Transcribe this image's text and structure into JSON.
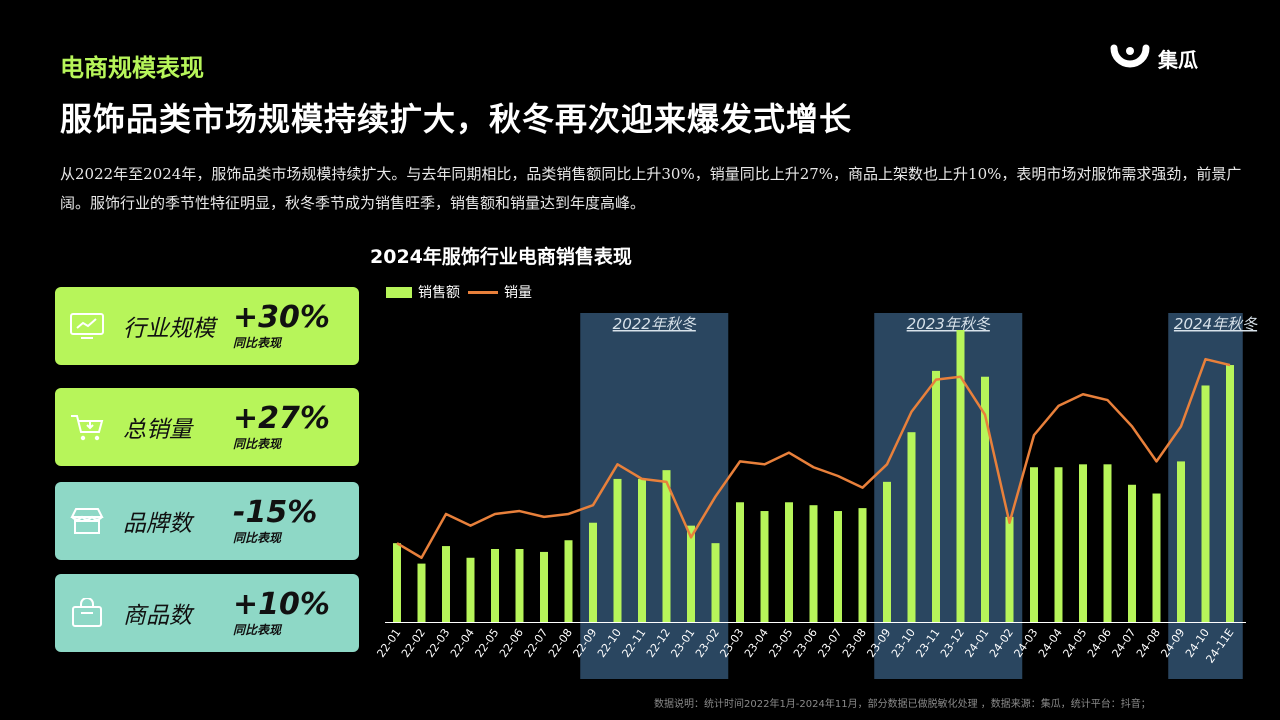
{
  "header": {
    "section_label": "电商规模表现",
    "headline": "服饰品类市场规模持续扩大，秋冬再次迎来爆发式增长",
    "brand_name": "集瓜"
  },
  "intro": "从2022年至2024年，服饰品类市场规模持续扩大。与去年同期相比，品类销售额同比上升30%，销量同比上升27%，商品上架数也上升10%，表明市场对服饰需求强劲，前景广阔。服饰行业的季节性特征明显，秋冬季节成为销售旺季，销售额和销量达到年度高峰。",
  "kpis": [
    {
      "label": "行业规模",
      "value": "+30%",
      "sub": "同比表现",
      "icon": "monitor-chart-icon"
    },
    {
      "label": "总销量",
      "value": "+27%",
      "sub": "同比表现",
      "icon": "shopping-cart-icon"
    },
    {
      "label": "品牌数",
      "value": "-15%",
      "sub": "同比表现",
      "icon": "store-icon"
    },
    {
      "label": "商品数",
      "value": "+10%",
      "sub": "同比表现",
      "icon": "shopping-bag-icon"
    }
  ],
  "colors": {
    "accent_green": "#b7f55a",
    "accent_teal": "#8ed8c6",
    "line_orange": "#e8803b",
    "highlight_band": "#2a4660"
  },
  "chart_data": {
    "type": "bar",
    "title": "2024年服饰行业电商销售表现",
    "categories": [
      "22-01",
      "22-02",
      "22-03",
      "22-04",
      "22-05",
      "22-06",
      "22-07",
      "22-08",
      "22-09",
      "22-10",
      "22-11",
      "22-12",
      "23-01",
      "23-02",
      "23-03",
      "23-04",
      "23-05",
      "23-06",
      "23-07",
      "23-08",
      "23-09",
      "23-10",
      "23-11",
      "23-12",
      "24-01",
      "24-02",
      "24-03",
      "24-04",
      "24-05",
      "24-06",
      "24-07",
      "24-08",
      "24-09",
      "24-10",
      "24-11E"
    ],
    "series": [
      {
        "name": "销售额",
        "type": "bar",
        "values": [
          27,
          20,
          26,
          22,
          25,
          25,
          24,
          28,
          34,
          49,
          49,
          52,
          33,
          27,
          41,
          38,
          41,
          40,
          38,
          39,
          48,
          65,
          86,
          100,
          84,
          36,
          53,
          53,
          54,
          54,
          47,
          44,
          55,
          81,
          88
        ]
      },
      {
        "name": "销量",
        "type": "line",
        "values": [
          27,
          22,
          37,
          33,
          37,
          38,
          36,
          37,
          40,
          54,
          49,
          48,
          29,
          43,
          55,
          54,
          58,
          53,
          50,
          46,
          54,
          72,
          83,
          84,
          71,
          34,
          64,
          74,
          78,
          76,
          67,
          55,
          67,
          90,
          88
        ]
      }
    ],
    "highlight_periods": [
      {
        "label": "2022年秋冬",
        "start": "22-09",
        "end": "23-02"
      },
      {
        "label": "2023年秋冬",
        "start": "23-09",
        "end": "24-02"
      },
      {
        "label": "2024年秋冬",
        "start": "24-09",
        "end": "24-11E"
      }
    ],
    "legend_position": "top-left",
    "grid": false
  },
  "footnote": "数据说明：统计时间2022年1月-2024年11月，部分数据已做脱敏化处理 ，数据来源：集瓜，统计平台：抖音；"
}
